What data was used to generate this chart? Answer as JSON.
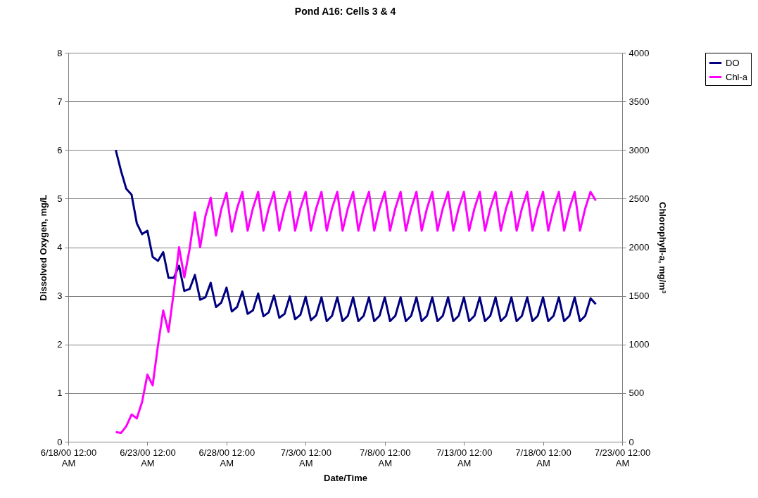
{
  "chart_data": {
    "type": "line",
    "title": "Pond A16: Cells 3 & 4",
    "xlabel": "Date/Time",
    "ylabel": "Dissolved Oxygen, mg/L",
    "y2label": "Chlorophyll-a, mg/m³",
    "x": [
      "2000-06-21T00:00",
      "2000-06-21T08:00",
      "2000-06-21T16:00",
      "2000-06-22T00:00",
      "2000-06-22T08:00",
      "2000-06-22T16:00",
      "2000-06-23T00:00",
      "2000-06-23T08:00",
      "2000-06-23T16:00",
      "2000-06-24T00:00",
      "2000-06-24T08:00",
      "2000-06-24T16:00",
      "2000-06-25T00:00",
      "2000-06-25T08:00",
      "2000-06-25T16:00",
      "2000-06-26T00:00",
      "2000-06-26T08:00",
      "2000-06-26T16:00",
      "2000-06-27T00:00",
      "2000-06-27T08:00",
      "2000-06-27T16:00",
      "2000-06-28T00:00",
      "2000-06-28T08:00",
      "2000-06-28T16:00",
      "2000-06-29T00:00",
      "2000-06-29T08:00",
      "2000-06-29T16:00",
      "2000-06-30T00:00",
      "2000-06-30T08:00",
      "2000-06-30T16:00",
      "2000-07-01T00:00",
      "2000-07-01T08:00",
      "2000-07-01T16:00",
      "2000-07-02T00:00",
      "2000-07-02T08:00",
      "2000-07-02T16:00",
      "2000-07-03T00:00",
      "2000-07-03T08:00",
      "2000-07-03T16:00",
      "2000-07-04T00:00",
      "2000-07-04T08:00",
      "2000-07-04T16:00",
      "2000-07-05T00:00",
      "2000-07-05T08:00",
      "2000-07-05T16:00",
      "2000-07-06T00:00",
      "2000-07-06T08:00",
      "2000-07-06T16:00",
      "2000-07-07T00:00",
      "2000-07-07T08:00",
      "2000-07-07T16:00",
      "2000-07-08T00:00",
      "2000-07-08T08:00",
      "2000-07-08T16:00",
      "2000-07-09T00:00",
      "2000-07-09T08:00",
      "2000-07-09T16:00",
      "2000-07-10T00:00",
      "2000-07-10T08:00",
      "2000-07-10T16:00",
      "2000-07-11T00:00",
      "2000-07-11T08:00",
      "2000-07-11T16:00",
      "2000-07-12T00:00",
      "2000-07-12T08:00",
      "2000-07-12T16:00",
      "2000-07-13T00:00",
      "2000-07-13T08:00",
      "2000-07-13T16:00",
      "2000-07-14T00:00",
      "2000-07-14T08:00",
      "2000-07-14T16:00",
      "2000-07-15T00:00",
      "2000-07-15T08:00",
      "2000-07-15T16:00",
      "2000-07-16T00:00",
      "2000-07-16T08:00",
      "2000-07-16T16:00",
      "2000-07-17T00:00",
      "2000-07-17T08:00",
      "2000-07-17T16:00",
      "2000-07-18T00:00",
      "2000-07-18T08:00",
      "2000-07-18T16:00",
      "2000-07-19T00:00",
      "2000-07-19T08:00",
      "2000-07-19T16:00",
      "2000-07-20T00:00",
      "2000-07-20T08:00",
      "2000-07-20T16:00",
      "2000-07-21T00:00",
      "2000-07-21T08:00"
    ],
    "series": [
      {
        "name": "DO",
        "color": "#000080",
        "values": [
          6.0,
          5.57,
          5.2,
          5.08,
          4.49,
          4.27,
          4.34,
          3.8,
          3.72,
          3.9,
          3.37,
          3.37,
          3.62,
          3.1,
          3.14,
          3.43,
          2.92,
          2.97,
          3.27,
          2.77,
          2.86,
          3.17,
          2.68,
          2.77,
          3.09,
          2.63,
          2.7,
          3.05,
          2.58,
          2.66,
          3.01,
          2.55,
          2.63,
          2.99,
          2.52,
          2.61,
          2.98,
          2.5,
          2.6,
          2.97,
          2.48,
          2.59,
          2.97,
          2.48,
          2.59,
          2.97,
          2.48,
          2.59,
          2.97,
          2.48,
          2.59,
          2.97,
          2.48,
          2.59,
          2.97,
          2.48,
          2.59,
          2.97,
          2.48,
          2.59,
          2.97,
          2.48,
          2.59,
          2.97,
          2.48,
          2.59,
          2.97,
          2.48,
          2.59,
          2.97,
          2.48,
          2.59,
          2.97,
          2.48,
          2.59,
          2.97,
          2.48,
          2.59,
          2.97,
          2.48,
          2.59,
          2.97,
          2.48,
          2.59,
          2.97,
          2.48,
          2.59,
          2.97,
          2.48,
          2.59,
          2.95,
          2.83
        ]
      },
      {
        "name": "Chl-a",
        "color": "#ff00ff",
        "axis": "y2",
        "values": [
          100,
          90,
          160,
          280,
          240,
          410,
          690,
          580,
          990,
          1350,
          1130,
          1540,
          2000,
          1690,
          1980,
          2360,
          2000,
          2320,
          2510,
          2120,
          2390,
          2560,
          2160,
          2400,
          2570,
          2170,
          2400,
          2570,
          2170,
          2400,
          2570,
          2170,
          2400,
          2570,
          2170,
          2400,
          2570,
          2170,
          2400,
          2570,
          2170,
          2400,
          2570,
          2170,
          2400,
          2570,
          2170,
          2400,
          2570,
          2170,
          2400,
          2570,
          2170,
          2400,
          2570,
          2170,
          2400,
          2570,
          2170,
          2400,
          2570,
          2170,
          2400,
          2570,
          2170,
          2400,
          2570,
          2170,
          2400,
          2570,
          2170,
          2400,
          2570,
          2170,
          2400,
          2570,
          2170,
          2400,
          2570,
          2170,
          2400,
          2570,
          2170,
          2400,
          2570,
          2170,
          2400,
          2570,
          2170,
          2400,
          2570,
          2480
        ]
      }
    ],
    "xlim": [
      "2000-06-18T00:00",
      "2000-07-23T00:00"
    ],
    "xticks": [
      {
        "value": "2000-06-18T00:00",
        "label": "6/18/00 12:00 AM"
      },
      {
        "value": "2000-06-23T00:00",
        "label": "6/23/00 12:00 AM"
      },
      {
        "value": "2000-06-28T00:00",
        "label": "6/28/00 12:00 AM"
      },
      {
        "value": "2000-07-03T00:00",
        "label": "7/3/00 12:00 AM"
      },
      {
        "value": "2000-07-08T00:00",
        "label": "7/8/00 12:00 AM"
      },
      {
        "value": "2000-07-13T00:00",
        "label": "7/13/00 12:00 AM"
      },
      {
        "value": "2000-07-18T00:00",
        "label": "7/18/00 12:00 AM"
      },
      {
        "value": "2000-07-23T00:00",
        "label": "7/23/00 12:00 AM"
      }
    ],
    "ylim": [
      0,
      8
    ],
    "yticks": [
      0,
      1,
      2,
      3,
      4,
      5,
      6,
      7,
      8
    ],
    "y2lim": [
      0,
      4000
    ],
    "y2ticks": [
      0,
      500,
      1000,
      1500,
      2000,
      2500,
      3000,
      3500,
      4000
    ],
    "grid": "y",
    "legend": "top right"
  }
}
